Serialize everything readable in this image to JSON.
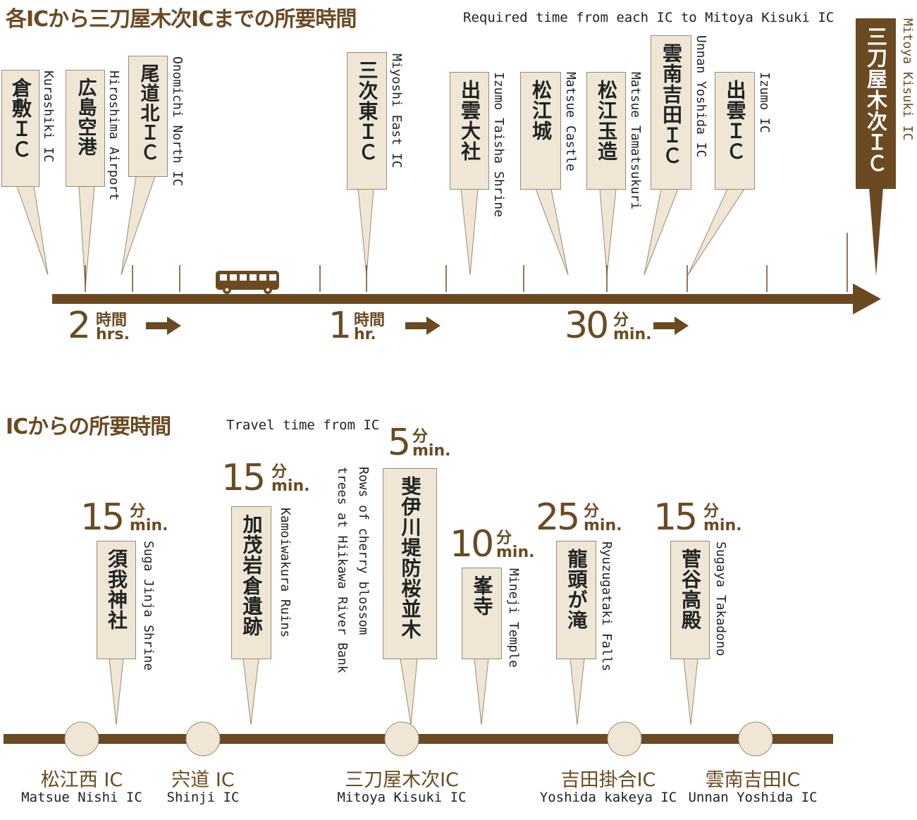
{
  "top": {
    "title": "各ICから三刀屋木次ICまでの所要時間",
    "subtitle": "Required time from each IC to Mitoya Kisuki IC",
    "markers": [
      {
        "ja": "倉敷ＩＣ",
        "en": "Kurashiki IC"
      },
      {
        "ja": "広島空港",
        "en": "Hiroshima Airport"
      },
      {
        "ja": "尾道北ＩＣ",
        "en": "Onomichi North IC"
      },
      {
        "ja": "三次東ＩＣ",
        "en": "Miyoshi East IC"
      },
      {
        "ja": "出雲大社",
        "en": "Izumo Taisha Shrine"
      },
      {
        "ja": "松江城",
        "en": "Matsue Castle"
      },
      {
        "ja": "松江玉造",
        "en": "Matsue Tamatsukuri"
      },
      {
        "ja": "雲南吉田ＩＣ",
        "en": "Unnan Yoshida IC"
      },
      {
        "ja": "出雲ＩＣ",
        "en": "Izumo IC"
      }
    ],
    "destination": {
      "ja": "三刀屋木次ＩＣ",
      "en": "Mitoya Kisuki IC"
    },
    "times": [
      {
        "num": "2",
        "ja": "時間",
        "en": "hrs."
      },
      {
        "num": "1",
        "ja": "時間",
        "en": "hr."
      },
      {
        "num": "30",
        "ja": "分",
        "en": "min."
      }
    ]
  },
  "bottom": {
    "title": "ICからの所要時間",
    "subtitle": "Travel time from IC",
    "spots": [
      {
        "num": "15",
        "ja_unit": "分",
        "en_unit": "min.",
        "name": "須我神社",
        "en": "Suga Jinja Shrine"
      },
      {
        "num": "15",
        "ja_unit": "分",
        "en_unit": "min.",
        "name": "加茂岩倉遺跡",
        "en": "Kamoiwakura Ruins"
      },
      {
        "num": "5",
        "ja_unit": "分",
        "en_unit": "min.",
        "name": "斐伊川堤防桜並木",
        "en1": "Rows of cherry blossom",
        "en2": "trees at Hiikawa River Bank"
      },
      {
        "num": "10",
        "ja_unit": "分",
        "en_unit": "min.",
        "name": "峯寺",
        "en": "Mineji Temple"
      },
      {
        "num": "25",
        "ja_unit": "分",
        "en_unit": "min.",
        "name": "龍頭が滝",
        "en": "Ryuzugataki Falls"
      },
      {
        "num": "15",
        "ja_unit": "分",
        "en_unit": "min.",
        "name": "菅谷高殿",
        "en": "Sugaya Takadono"
      }
    ],
    "ics": [
      {
        "ja": "松江西 IC",
        "en": "Matsue Nishi IC"
      },
      {
        "ja": "宍道 IC",
        "en": "Shinji IC"
      },
      {
        "ja": "三刀屋木次IC",
        "en": "Mitoya Kisuki IC"
      },
      {
        "ja": "吉田掛合IC",
        "en": "Yoshida kakeya IC"
      },
      {
        "ja": "雲南吉田IC",
        "en": "Unnan Yoshida IC"
      }
    ]
  },
  "colors": {
    "brown": "#6b4a22",
    "beige": "#efe6d6",
    "circle": "#efe6d6"
  },
  "icons": [
    "bus-icon",
    "arrow-right-icon"
  ]
}
